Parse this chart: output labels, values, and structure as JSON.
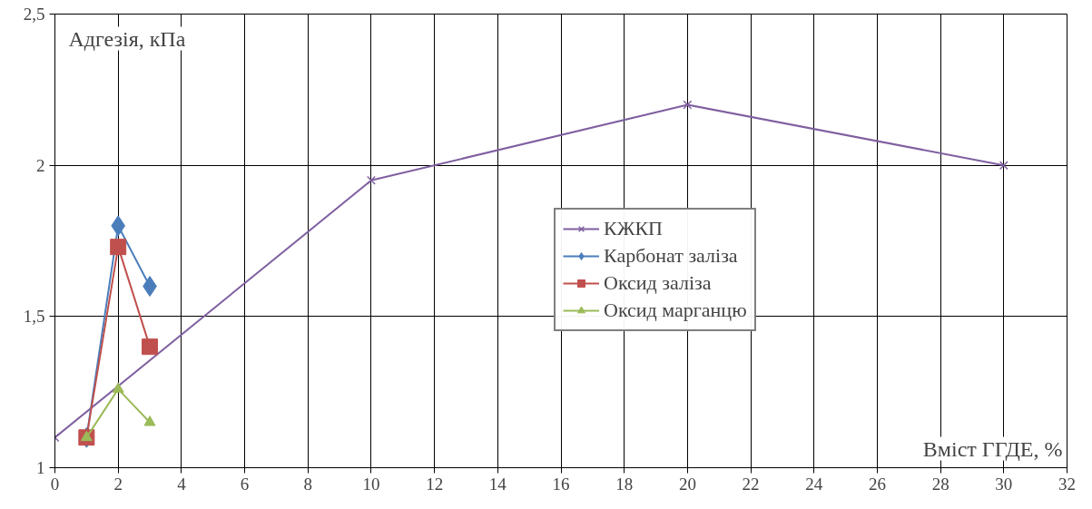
{
  "chart_data": {
    "type": "line",
    "xlabel": "Вміст ГГДЕ, %",
    "ylabel": "Адгезія, кПа",
    "xlim": [
      0,
      32
    ],
    "xticks": [
      0,
      2,
      4,
      6,
      8,
      10,
      12,
      14,
      16,
      18,
      20,
      22,
      24,
      26,
      28,
      30,
      32
    ],
    "ylim": [
      1,
      2.5
    ],
    "yticks": [
      1,
      {
        "value": 1.5,
        "label": "1,5"
      },
      2,
      {
        "value": 2.5,
        "label": "2,5"
      }
    ],
    "grid": true,
    "legend": "right",
    "line_style": "solid",
    "series": [
      {
        "name": "КЖКП",
        "color": "#7f5fa0",
        "marker": "cross",
        "x": [
          0,
          10,
          20,
          30
        ],
        "values": [
          1.1,
          1.95,
          2.2,
          2.0
        ]
      },
      {
        "name": "Карбонат заліза",
        "color": "#4a7ebb",
        "marker": "diamond",
        "x": [
          1,
          2,
          3
        ],
        "values": [
          1.1,
          1.8,
          1.6
        ]
      },
      {
        "name": "Оксид заліза",
        "color": "#c0504d",
        "marker": "square",
        "x": [
          1,
          2,
          3
        ],
        "values": [
          1.1,
          1.73,
          1.4
        ]
      },
      {
        "name": "Оксид марганцю",
        "color": "#9bbb59",
        "marker": "triangle",
        "x": [
          1,
          2,
          3
        ],
        "values": [
          1.1,
          1.26,
          1.15
        ]
      }
    ]
  }
}
